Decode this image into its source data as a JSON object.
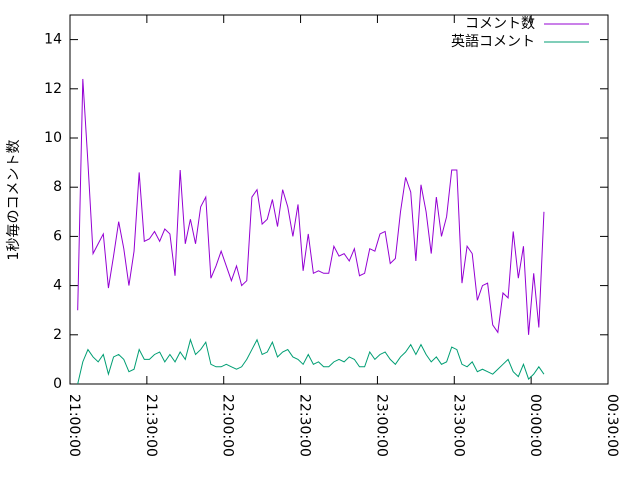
{
  "chart_data": {
    "type": "line",
    "y_label": "1秒毎のコメント数",
    "x": [
      "21:03",
      "21:05",
      "21:07",
      "21:09",
      "21:11",
      "21:13",
      "21:15",
      "21:17",
      "21:19",
      "21:21",
      "21:23",
      "21:25",
      "21:27",
      "21:29",
      "21:31",
      "21:33",
      "21:35",
      "21:37",
      "21:39",
      "21:41",
      "21:43",
      "21:45",
      "21:47",
      "21:49",
      "21:51",
      "21:53",
      "21:55",
      "21:57",
      "21:59",
      "22:01",
      "22:03",
      "22:05",
      "22:07",
      "22:09",
      "22:11",
      "22:13",
      "22:15",
      "22:17",
      "22:19",
      "22:21",
      "22:23",
      "22:25",
      "22:27",
      "22:29",
      "22:31",
      "22:33",
      "22:35",
      "22:37",
      "22:39",
      "22:41",
      "22:43",
      "22:45",
      "22:47",
      "22:49",
      "22:51",
      "22:53",
      "22:55",
      "22:57",
      "22:59",
      "23:01",
      "23:03",
      "23:05",
      "23:07",
      "23:09",
      "23:11",
      "23:13",
      "23:15",
      "23:17",
      "23:19",
      "23:21",
      "23:23",
      "23:25",
      "23:27",
      "23:29",
      "23:31",
      "23:33",
      "23:35",
      "23:37",
      "23:39",
      "23:41",
      "23:43",
      "23:45",
      "23:47",
      "23:49",
      "23:51",
      "23:53",
      "23:55",
      "23:57",
      "23:59",
      "00:01",
      "00:03",
      "00:05"
    ],
    "series": [
      {
        "name": "コメント数",
        "color": "#9400d3",
        "values": [
          3.0,
          12.4,
          9.0,
          5.3,
          5.7,
          6.1,
          3.9,
          5.2,
          6.6,
          5.5,
          4.0,
          5.4,
          8.6,
          5.8,
          5.9,
          6.2,
          5.8,
          6.3,
          6.1,
          4.4,
          8.7,
          5.7,
          6.7,
          5.7,
          7.2,
          7.6,
          4.3,
          4.8,
          5.4,
          4.8,
          4.2,
          4.8,
          4.0,
          4.2,
          7.6,
          7.9,
          6.5,
          6.7,
          7.5,
          6.4,
          7.9,
          7.2,
          6.0,
          7.3,
          4.6,
          6.1,
          4.5,
          4.6,
          4.5,
          4.5,
          5.6,
          5.2,
          5.3,
          5.0,
          5.5,
          4.4,
          4.5,
          5.5,
          5.4,
          6.1,
          6.2,
          4.9,
          5.1,
          7.0,
          8.4,
          7.8,
          5.0,
          8.1,
          7.0,
          5.3,
          7.6,
          6.0,
          6.8,
          8.7,
          8.7,
          4.1,
          5.6,
          5.3,
          3.4,
          4.0,
          4.1,
          2.4,
          2.1,
          3.7,
          3.5,
          6.2,
          4.3,
          5.6,
          2.0,
          4.5,
          2.3,
          7.0
        ]
      },
      {
        "name": "英語コメント",
        "color": "#009e73",
        "values": [
          0,
          0.9,
          1.4,
          1.1,
          0.9,
          1.2,
          0.4,
          1.1,
          1.2,
          1.0,
          0.5,
          0.6,
          1.4,
          1.0,
          1.0,
          1.2,
          1.3,
          0.9,
          1.2,
          0.9,
          1.3,
          1.0,
          1.8,
          1.2,
          1.4,
          1.7,
          0.8,
          0.7,
          0.7,
          0.8,
          0.7,
          0.6,
          0.7,
          1.0,
          1.4,
          1.8,
          1.2,
          1.3,
          1.7,
          1.1,
          1.3,
          1.4,
          1.1,
          1.0,
          0.8,
          1.2,
          0.8,
          0.9,
          0.7,
          0.7,
          0.9,
          1.0,
          0.9,
          1.1,
          1.0,
          0.7,
          0.7,
          1.3,
          1.0,
          1.2,
          1.3,
          1.0,
          0.8,
          1.1,
          1.3,
          1.6,
          1.2,
          1.6,
          1.2,
          0.9,
          1.1,
          0.8,
          0.9,
          1.5,
          1.4,
          0.8,
          0.7,
          0.9,
          0.5,
          0.6,
          0.5,
          0.4,
          0.6,
          0.8,
          1.0,
          0.5,
          0.3,
          0.8,
          0.2,
          0.4,
          0.7,
          0.4
        ]
      }
    ],
    "xlim": [
      "21:00:00",
      "00:30:00"
    ],
    "xticks": [
      "21:00:00",
      "21:30:00",
      "22:00:00",
      "22:30:00",
      "23:00:00",
      "23:30:00",
      "00:00:00",
      "00:30:00"
    ],
    "ylim": [
      0,
      15
    ],
    "yticks": [
      0,
      2,
      4,
      6,
      8,
      10,
      12,
      14
    ],
    "legend": "top-right"
  }
}
